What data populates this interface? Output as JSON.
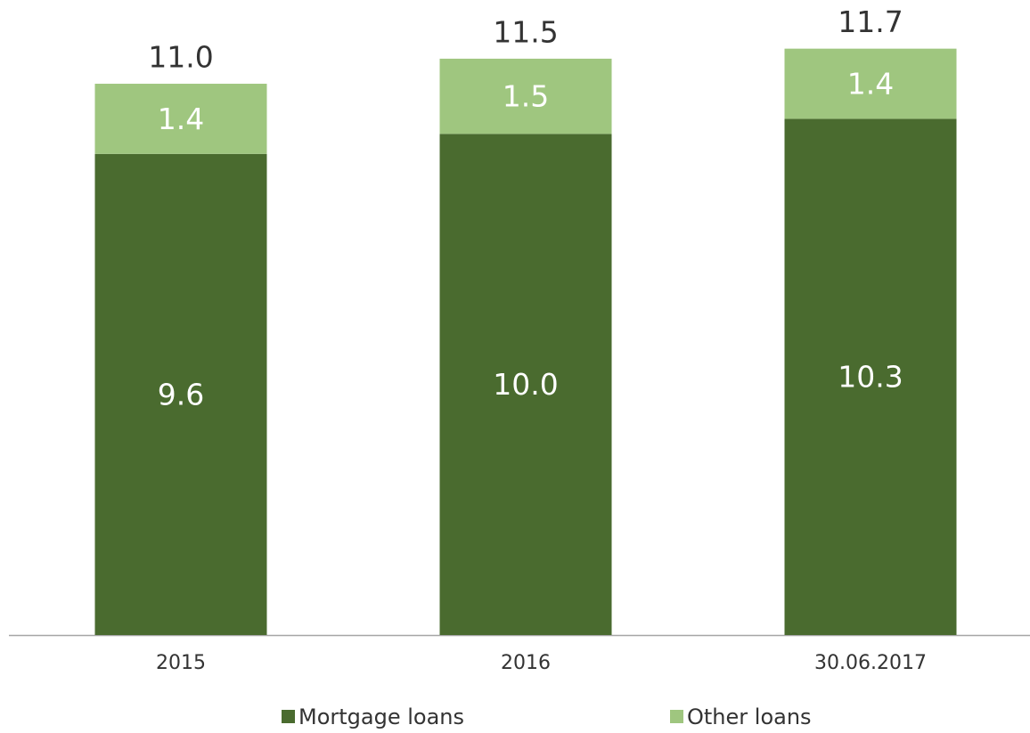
{
  "chart_data": {
    "type": "stacked_bar",
    "categories": [
      "2015",
      "2016",
      "30.06.2017"
    ],
    "series": [
      {
        "name": "Mortgage loans",
        "color": "#4a6b2f",
        "values": [
          9.6,
          10.0,
          10.3
        ],
        "value_labels": [
          "9.6",
          "10.0",
          "10.3"
        ]
      },
      {
        "name": "Other loans",
        "color": "#9fc67f",
        "values": [
          1.4,
          1.5,
          1.4
        ],
        "value_labels": [
          "1.4",
          "1.5",
          "1.4"
        ]
      }
    ],
    "totals": [
      11.0,
      11.5,
      11.7
    ],
    "total_labels": [
      "11.0",
      "11.5",
      "11.7"
    ],
    "ylim": [
      0,
      12.6
    ],
    "legend": "bottom"
  }
}
